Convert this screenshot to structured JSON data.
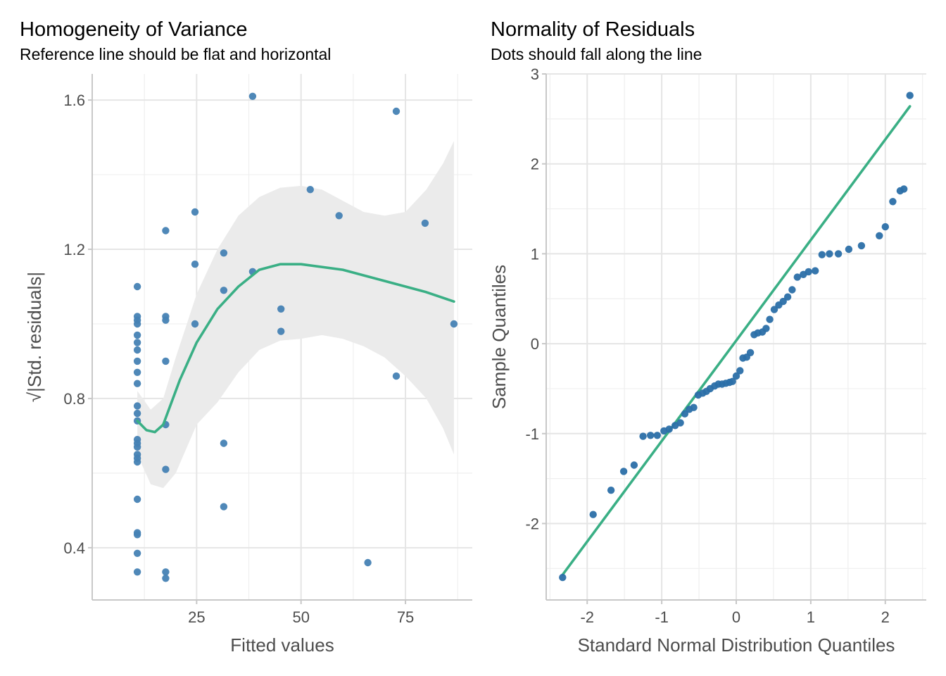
{
  "chart_data": [
    {
      "type": "scatter",
      "title": "Homogeneity of Variance",
      "subtitle": "Reference line should be flat and horizontal",
      "xlabel": "Fitted values",
      "ylabel": "√|Std. residuals|",
      "xlim": [
        0,
        91
      ],
      "ylim": [
        0.26,
        1.67
      ],
      "x_ticks": [
        25,
        50,
        75
      ],
      "x_tick_labels": [
        "25",
        "50",
        "75"
      ],
      "y_ticks": [
        0.4,
        0.8,
        1.2,
        1.6
      ],
      "y_tick_labels": [
        "0.4",
        "0.8",
        "1.2",
        "1.6"
      ],
      "grid": true,
      "point_color": "#4682b4",
      "line_color": "#3aaf85",
      "band_color": "#ebebeb",
      "points": [
        [
          10.8,
          1.1
        ],
        [
          10.8,
          1.02
        ],
        [
          10.8,
          1.01
        ],
        [
          10.8,
          1.0
        ],
        [
          10.8,
          0.97
        ],
        [
          10.8,
          0.95
        ],
        [
          10.8,
          0.93
        ],
        [
          10.8,
          0.9
        ],
        [
          10.8,
          0.87
        ],
        [
          10.8,
          0.84
        ],
        [
          10.8,
          0.78
        ],
        [
          10.8,
          0.76
        ],
        [
          10.8,
          0.74
        ],
        [
          10.8,
          0.69
        ],
        [
          10.8,
          0.68
        ],
        [
          10.8,
          0.67
        ],
        [
          10.8,
          0.65
        ],
        [
          10.8,
          0.64
        ],
        [
          10.8,
          0.63
        ],
        [
          10.8,
          0.53
        ],
        [
          10.8,
          0.44
        ],
        [
          10.8,
          0.435
        ],
        [
          10.8,
          0.385
        ],
        [
          10.8,
          0.335
        ],
        [
          17.6,
          1.25
        ],
        [
          17.6,
          1.02
        ],
        [
          17.6,
          1.01
        ],
        [
          17.6,
          0.9
        ],
        [
          17.6,
          0.73
        ],
        [
          17.6,
          0.61
        ],
        [
          17.6,
          0.335
        ],
        [
          17.6,
          0.318
        ],
        [
          24.6,
          1.3
        ],
        [
          24.6,
          1.16
        ],
        [
          24.6,
          1.0
        ],
        [
          31.5,
          1.19
        ],
        [
          31.5,
          1.09
        ],
        [
          31.5,
          0.68
        ],
        [
          31.5,
          0.51
        ],
        [
          38.4,
          1.61
        ],
        [
          38.4,
          1.14
        ],
        [
          45.2,
          1.04
        ],
        [
          45.2,
          0.98
        ],
        [
          52.2,
          1.36
        ],
        [
          59.1,
          1.29
        ],
        [
          66.0,
          0.36
        ],
        [
          72.8,
          1.57
        ],
        [
          72.8,
          0.86
        ],
        [
          79.7,
          1.27
        ],
        [
          86.6,
          1.0
        ]
      ],
      "smooth_line": [
        [
          10.8,
          0.74
        ],
        [
          13,
          0.715
        ],
        [
          15,
          0.71
        ],
        [
          17,
          0.73
        ],
        [
          19,
          0.79
        ],
        [
          21,
          0.85
        ],
        [
          25,
          0.95
        ],
        [
          30,
          1.04
        ],
        [
          35,
          1.1
        ],
        [
          40,
          1.145
        ],
        [
          45,
          1.16
        ],
        [
          50,
          1.16
        ],
        [
          60,
          1.145
        ],
        [
          70,
          1.115
        ],
        [
          80,
          1.085
        ],
        [
          86.6,
          1.06
        ]
      ],
      "band_upper": [
        [
          10.8,
          0.82
        ],
        [
          14,
          0.77
        ],
        [
          17,
          0.8
        ],
        [
          20,
          0.91
        ],
        [
          25,
          1.08
        ],
        [
          30,
          1.2
        ],
        [
          35,
          1.29
        ],
        [
          40,
          1.34
        ],
        [
          45,
          1.365
        ],
        [
          50,
          1.37
        ],
        [
          55,
          1.36
        ],
        [
          60,
          1.33
        ],
        [
          65,
          1.3
        ],
        [
          70,
          1.29
        ],
        [
          75,
          1.3
        ],
        [
          80,
          1.36
        ],
        [
          84,
          1.43
        ],
        [
          86.6,
          1.49
        ]
      ],
      "band_lower": [
        [
          86.6,
          0.65
        ],
        [
          84,
          0.72
        ],
        [
          80,
          0.8
        ],
        [
          75,
          0.86
        ],
        [
          70,
          0.91
        ],
        [
          65,
          0.94
        ],
        [
          60,
          0.96
        ],
        [
          55,
          0.97
        ],
        [
          50,
          0.96
        ],
        [
          45,
          0.955
        ],
        [
          40,
          0.93
        ],
        [
          35,
          0.87
        ],
        [
          30,
          0.79
        ],
        [
          25,
          0.73
        ],
        [
          20,
          0.6
        ],
        [
          17,
          0.56
        ],
        [
          14,
          0.57
        ],
        [
          10.8,
          0.65
        ]
      ]
    },
    {
      "type": "scatter",
      "title": "Normality of Residuals",
      "subtitle": "Dots should fall along the line",
      "xlabel": "Standard Normal Distribution Quantiles",
      "ylabel": "Sample Quantiles",
      "xlim": [
        -2.55,
        2.55
      ],
      "ylim": [
        -2.85,
        3.0
      ],
      "x_ticks": [
        -2,
        -1,
        0,
        1,
        2
      ],
      "x_tick_labels": [
        "-2",
        "-1",
        "0",
        "1",
        "2"
      ],
      "y_ticks": [
        -2,
        -1,
        0,
        1,
        2,
        3
      ],
      "y_tick_labels": [
        "-2",
        "-1",
        "0",
        "1",
        "2",
        "3"
      ],
      "grid": true,
      "point_color": "#2b6fa8",
      "line_color": "#3aaf85",
      "reference_line": [
        [
          -2.33,
          -2.57
        ],
        [
          2.33,
          2.64
        ]
      ],
      "points": [
        [
          -2.33,
          -2.6
        ],
        [
          -1.92,
          -1.9
        ],
        [
          -1.68,
          -1.63
        ],
        [
          -1.51,
          -1.42
        ],
        [
          -1.37,
          -1.35
        ],
        [
          -1.25,
          -1.03
        ],
        [
          -1.15,
          -1.02
        ],
        [
          -1.06,
          -1.02
        ],
        [
          -0.97,
          -0.97
        ],
        [
          -0.9,
          -0.95
        ],
        [
          -0.82,
          -0.91
        ],
        [
          -0.75,
          -0.88
        ],
        [
          -0.69,
          -0.78
        ],
        [
          -0.63,
          -0.73
        ],
        [
          -0.57,
          -0.71
        ],
        [
          -0.51,
          -0.57
        ],
        [
          -0.45,
          -0.55
        ],
        [
          -0.4,
          -0.53
        ],
        [
          -0.35,
          -0.5
        ],
        [
          -0.29,
          -0.47
        ],
        [
          -0.24,
          -0.45
        ],
        [
          -0.19,
          -0.45
        ],
        [
          -0.14,
          -0.44
        ],
        [
          -0.09,
          -0.43
        ],
        [
          -0.05,
          -0.42
        ],
        [
          0.0,
          -0.36
        ],
        [
          0.05,
          -0.3
        ],
        [
          0.09,
          -0.16
        ],
        [
          0.14,
          -0.15
        ],
        [
          0.19,
          -0.1
        ],
        [
          0.24,
          0.1
        ],
        [
          0.29,
          0.12
        ],
        [
          0.35,
          0.13
        ],
        [
          0.4,
          0.17
        ],
        [
          0.45,
          0.27
        ],
        [
          0.51,
          0.38
        ],
        [
          0.57,
          0.43
        ],
        [
          0.63,
          0.47
        ],
        [
          0.69,
          0.52
        ],
        [
          0.75,
          0.6
        ],
        [
          0.82,
          0.74
        ],
        [
          0.9,
          0.77
        ],
        [
          0.97,
          0.8
        ],
        [
          1.06,
          0.81
        ],
        [
          1.15,
          0.99
        ],
        [
          1.25,
          1.0
        ],
        [
          1.37,
          1.0
        ],
        [
          1.51,
          1.05
        ],
        [
          1.68,
          1.09
        ],
        [
          1.92,
          1.2
        ],
        [
          2.0,
          1.3
        ],
        [
          2.1,
          1.58
        ],
        [
          2.2,
          1.7
        ],
        [
          2.25,
          1.72
        ],
        [
          2.33,
          2.76
        ]
      ]
    }
  ]
}
